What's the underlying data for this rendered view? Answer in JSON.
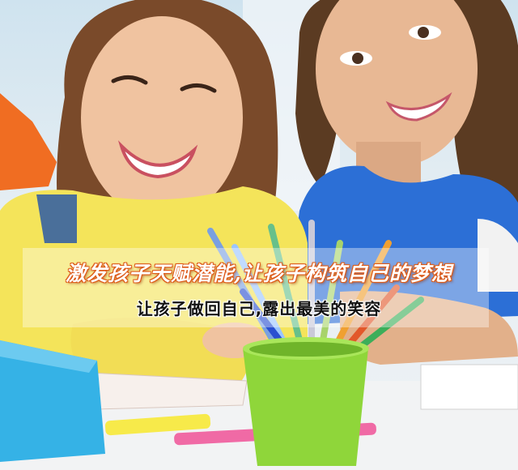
{
  "banner": {
    "slogan_main": "激发孩子天赋潜能,让孩子构筑自己的梦想",
    "slogan_sub": "让孩子做回自己,露出最美的笑容",
    "accent_color": "#e0641c"
  }
}
